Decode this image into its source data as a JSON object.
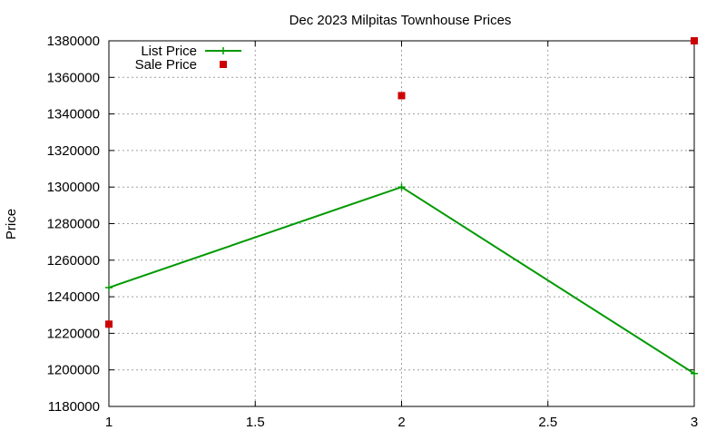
{
  "chart_data": {
    "type": "line",
    "title": "Dec 2023 Milpitas Townhouse Prices",
    "xlabel": "",
    "ylabel": "Price",
    "xlim": [
      1,
      3
    ],
    "ylim": [
      1180000,
      1380000
    ],
    "xticks": [
      1,
      1.5,
      2,
      2.5,
      3
    ],
    "yticks": [
      1180000,
      1200000,
      1220000,
      1240000,
      1260000,
      1280000,
      1300000,
      1320000,
      1340000,
      1360000,
      1380000
    ],
    "grid": true,
    "legend_position": "top-left",
    "series": [
      {
        "name": "List Price",
        "style": "line-points",
        "color": "#009900",
        "x": [
          1,
          2,
          3
        ],
        "y": [
          1245000,
          1300000,
          1198000
        ]
      },
      {
        "name": "Sale Price",
        "style": "points",
        "color": "#cc0000",
        "x": [
          1,
          2,
          3
        ],
        "y": [
          1225000,
          1350000,
          1380000
        ]
      }
    ]
  }
}
